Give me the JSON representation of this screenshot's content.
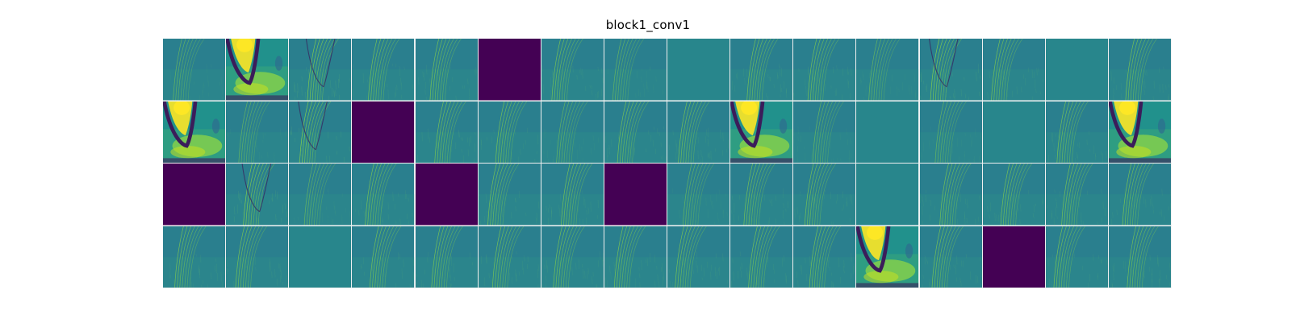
{
  "title": "block1_conv1",
  "grid": {
    "rows": 4,
    "cols": 16
  },
  "colors": {
    "dead": "#440154",
    "flat": "#28868c",
    "base": "#2a7f8e",
    "streak": "#8fd744",
    "hot": "#fde725",
    "dark": "#3b1c5a",
    "teal": "#21918c"
  },
  "tiles": [
    "faint",
    "bright",
    "full",
    "mid",
    "mid",
    "dead",
    "mid",
    "faint",
    "flat",
    "mid",
    "mid",
    "faint",
    "full",
    "mid",
    "flat",
    "mid",
    "bright",
    "faint",
    "full",
    "dead",
    "mid",
    "mid",
    "faint",
    "mid",
    "mid",
    "bright",
    "faint",
    "flat",
    "faint",
    "flat",
    "mid",
    "bright",
    "dead",
    "full",
    "faint",
    "mid",
    "dead",
    "mid",
    "mid",
    "dead",
    "faint",
    "mid",
    "mid",
    "flat",
    "mid",
    "mid",
    "mid",
    "mid",
    "mid",
    "mid",
    "flat",
    "mid",
    "mid",
    "mid",
    "mid",
    "mid",
    "mid",
    "mid",
    "mid",
    "bright",
    "mid",
    "dead",
    "mid",
    "mid"
  ]
}
